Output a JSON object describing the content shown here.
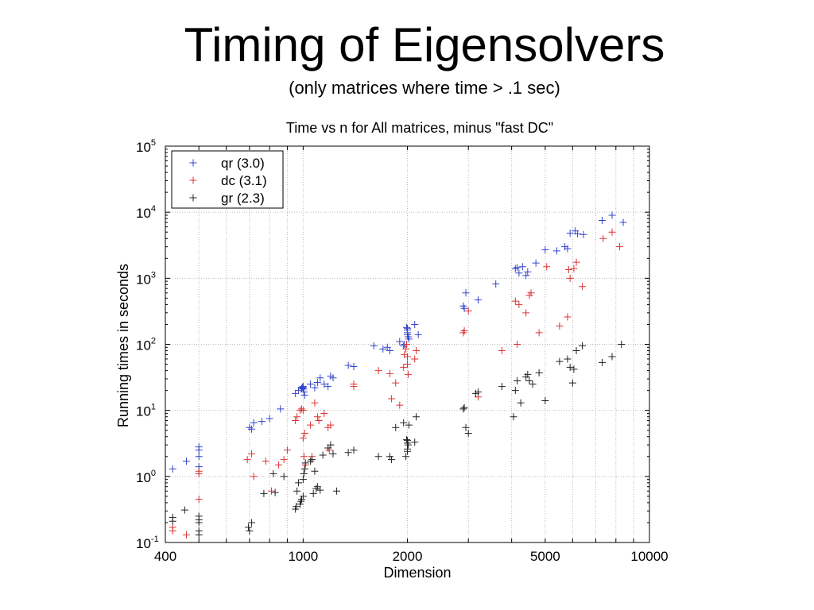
{
  "slide": {
    "title": "Timing of Eigensolvers",
    "subtitle": "(only matrices where time > .1 sec)"
  },
  "chart_data": {
    "type": "scatter",
    "title": "Time vs n for All matrices, minus \"fast DC\"",
    "xlabel": "Dimension",
    "ylabel": "Running times in seconds",
    "xscale": "log",
    "yscale": "log",
    "xlim": [
      400,
      10000
    ],
    "ylim": [
      0.1,
      100000
    ],
    "grid": true,
    "legend_position": "top-left",
    "x_ticks": [
      "400",
      "1000",
      "2000",
      "5000",
      "10000"
    ],
    "y_ticks": [
      {
        "base": "10",
        "exp": "-1"
      },
      {
        "base": "10",
        "exp": "0"
      },
      {
        "base": "10",
        "exp": "1"
      },
      {
        "base": "10",
        "exp": "2"
      },
      {
        "base": "10",
        "exp": "3"
      },
      {
        "base": "10",
        "exp": "4"
      },
      {
        "base": "10",
        "exp": "5"
      }
    ],
    "series": [
      {
        "name": "qr (3.0)",
        "color": "#3344cc",
        "points": [
          [
            420,
            1.3
          ],
          [
            460,
            1.7
          ],
          [
            500,
            1.4
          ],
          [
            500,
            2.0
          ],
          [
            500,
            2.5
          ],
          [
            500,
            2.8
          ],
          [
            700,
            5.5
          ],
          [
            710,
            5.2
          ],
          [
            720,
            6.5
          ],
          [
            760,
            6.8
          ],
          [
            800,
            7.5
          ],
          [
            860,
            10.5
          ],
          [
            950,
            18
          ],
          [
            970,
            20
          ],
          [
            990,
            21.5
          ],
          [
            995,
            22.5
          ],
          [
            1000,
            23
          ],
          [
            1000,
            22
          ],
          [
            1000,
            21
          ],
          [
            1005,
            19
          ],
          [
            1010,
            17
          ],
          [
            1050,
            25
          ],
          [
            1080,
            22
          ],
          [
            1100,
            26.5
          ],
          [
            1120,
            31
          ],
          [
            1150,
            25
          ],
          [
            1180,
            23
          ],
          [
            1200,
            33
          ],
          [
            1220,
            31
          ],
          [
            1350,
            48
          ],
          [
            1400,
            46
          ],
          [
            1600,
            95
          ],
          [
            1700,
            85
          ],
          [
            1750,
            90
          ],
          [
            1780,
            80
          ],
          [
            1900,
            110
          ],
          [
            1950,
            95
          ],
          [
            1960,
            100
          ],
          [
            1990,
            180
          ],
          [
            2000,
            175
          ],
          [
            2000,
            165
          ],
          [
            2000,
            150
          ],
          [
            2000,
            140
          ],
          [
            2010,
            130
          ],
          [
            2020,
            120
          ],
          [
            2100,
            200
          ],
          [
            2150,
            140
          ],
          [
            2900,
            380
          ],
          [
            2920,
            350
          ],
          [
            2950,
            600
          ],
          [
            3200,
            470
          ],
          [
            3600,
            820
          ],
          [
            4100,
            1400
          ],
          [
            4150,
            1450
          ],
          [
            4200,
            1200
          ],
          [
            4300,
            1500
          ],
          [
            4400,
            1100
          ],
          [
            4450,
            1250
          ],
          [
            4700,
            1700
          ],
          [
            5000,
            2700
          ],
          [
            5400,
            2600
          ],
          [
            5700,
            3000
          ],
          [
            5800,
            2800
          ],
          [
            5900,
            4800
          ],
          [
            6100,
            5200
          ],
          [
            6200,
            4700
          ],
          [
            6450,
            4600
          ],
          [
            7300,
            7500
          ],
          [
            7800,
            9000
          ],
          [
            8400,
            7000
          ]
        ]
      },
      {
        "name": "dc (3.1)",
        "color": "#dd3333",
        "points": [
          [
            420,
            0.15
          ],
          [
            420,
            0.17
          ],
          [
            460,
            0.13
          ],
          [
            500,
            0.45
          ],
          [
            500,
            1.1
          ],
          [
            500,
            1.2
          ],
          [
            690,
            1.8
          ],
          [
            710,
            2.2
          ],
          [
            720,
            1.0
          ],
          [
            780,
            1.7
          ],
          [
            810,
            0.6
          ],
          [
            850,
            1.5
          ],
          [
            880,
            1.8
          ],
          [
            900,
            2.5
          ],
          [
            950,
            7
          ],
          [
            960,
            8
          ],
          [
            980,
            10
          ],
          [
            990,
            10.5
          ],
          [
            1000,
            10
          ],
          [
            1000,
            3.8
          ],
          [
            1005,
            2.0
          ],
          [
            1010,
            4.5
          ],
          [
            1015,
            1.5
          ],
          [
            1050,
            6
          ],
          [
            1060,
            2.0
          ],
          [
            1080,
            13
          ],
          [
            1100,
            8
          ],
          [
            1110,
            7
          ],
          [
            1150,
            9
          ],
          [
            1180,
            5.5
          ],
          [
            1190,
            2.5
          ],
          [
            1200,
            6.0
          ],
          [
            1400,
            23
          ],
          [
            1400,
            25
          ],
          [
            1650,
            40
          ],
          [
            1780,
            36
          ],
          [
            1800,
            15
          ],
          [
            1850,
            26
          ],
          [
            1900,
            12
          ],
          [
            1950,
            45
          ],
          [
            1960,
            70
          ],
          [
            1980,
            85
          ],
          [
            1990,
            100
          ],
          [
            2000,
            65
          ],
          [
            2000,
            50
          ],
          [
            2010,
            35
          ],
          [
            2100,
            60
          ],
          [
            2120,
            80
          ],
          [
            2900,
            150
          ],
          [
            2920,
            160
          ],
          [
            3000,
            320
          ],
          [
            3200,
            16
          ],
          [
            3750,
            80
          ],
          [
            4100,
            450
          ],
          [
            4150,
            100
          ],
          [
            4200,
            400
          ],
          [
            4400,
            300
          ],
          [
            4500,
            550
          ],
          [
            4550,
            600
          ],
          [
            4800,
            150
          ],
          [
            5050,
            1500
          ],
          [
            5500,
            190
          ],
          [
            5800,
            260
          ],
          [
            5850,
            1350
          ],
          [
            5900,
            1000
          ],
          [
            6050,
            1400
          ],
          [
            6150,
            1750
          ],
          [
            6400,
            750
          ],
          [
            7350,
            4000
          ],
          [
            7800,
            5000
          ],
          [
            8200,
            3000
          ]
        ]
      },
      {
        "name": "gr (2.3)",
        "color": "#222222",
        "points": [
          [
            420,
            0.21
          ],
          [
            420,
            0.24
          ],
          [
            455,
            0.31
          ],
          [
            500,
            0.13
          ],
          [
            500,
            0.15
          ],
          [
            500,
            0.2
          ],
          [
            500,
            0.22
          ],
          [
            500,
            0.25
          ],
          [
            695,
            0.17
          ],
          [
            700,
            0.15
          ],
          [
            710,
            0.2
          ],
          [
            770,
            0.55
          ],
          [
            820,
            1.1
          ],
          [
            830,
            0.57
          ],
          [
            880,
            1.0
          ],
          [
            950,
            0.32
          ],
          [
            955,
            0.35
          ],
          [
            960,
            0.6
          ],
          [
            970,
            0.8
          ],
          [
            980,
            0.38
          ],
          [
            985,
            0.42
          ],
          [
            990,
            0.45
          ],
          [
            1000,
            0.5
          ],
          [
            1000,
            0.9
          ],
          [
            1005,
            1.1
          ],
          [
            1010,
            1.3
          ],
          [
            1015,
            1.6
          ],
          [
            1050,
            1.7
          ],
          [
            1060,
            1.8
          ],
          [
            1070,
            0.55
          ],
          [
            1080,
            1.2
          ],
          [
            1090,
            0.65
          ],
          [
            1100,
            0.7
          ],
          [
            1120,
            0.62
          ],
          [
            1140,
            2.1
          ],
          [
            1180,
            2.7
          ],
          [
            1200,
            3.0
          ],
          [
            1220,
            2.2
          ],
          [
            1250,
            0.6
          ],
          [
            1350,
            2.3
          ],
          [
            1400,
            2.5
          ],
          [
            1650,
            2.0
          ],
          [
            1780,
            2.0
          ],
          [
            1800,
            1.8
          ],
          [
            1850,
            5.5
          ],
          [
            1950,
            6.5
          ],
          [
            1980,
            2.0
          ],
          [
            1990,
            3.6
          ],
          [
            2000,
            3.5
          ],
          [
            2000,
            3.2
          ],
          [
            2000,
            2.6
          ],
          [
            2000,
            2.4
          ],
          [
            2010,
            3.0
          ],
          [
            2020,
            6.0
          ],
          [
            2100,
            3.3
          ],
          [
            2120,
            8.0
          ],
          [
            2900,
            10.5
          ],
          [
            2920,
            11
          ],
          [
            2950,
            5.5
          ],
          [
            3000,
            4.5
          ],
          [
            3150,
            18
          ],
          [
            3200,
            19
          ],
          [
            3750,
            23
          ],
          [
            4050,
            8
          ],
          [
            4100,
            20
          ],
          [
            4150,
            28
          ],
          [
            4250,
            13
          ],
          [
            4400,
            32
          ],
          [
            4450,
            35
          ],
          [
            4500,
            28
          ],
          [
            4600,
            25
          ],
          [
            4800,
            37
          ],
          [
            5000,
            14
          ],
          [
            5500,
            55
          ],
          [
            5800,
            60
          ],
          [
            5900,
            45
          ],
          [
            6000,
            26
          ],
          [
            6050,
            42
          ],
          [
            6150,
            80
          ],
          [
            6400,
            95
          ],
          [
            7300,
            53
          ],
          [
            7800,
            65
          ],
          [
            8300,
            100
          ]
        ]
      }
    ]
  }
}
